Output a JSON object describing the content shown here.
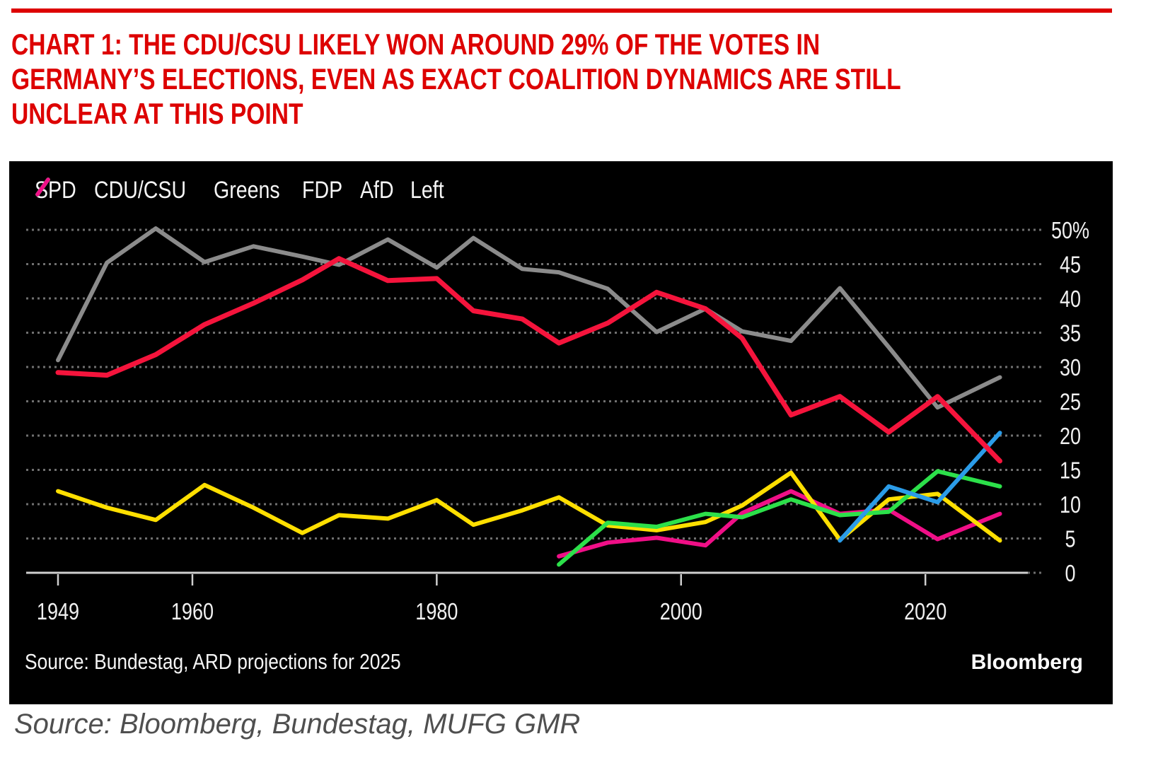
{
  "header": {
    "rule_color": "#dd0000",
    "title_color": "#dd0000",
    "title_lines": [
      "CHART 1: THE CDU/CSU LIKELY WON AROUND 29% OF THE VOTES IN",
      "GERMANY’S ELECTIONS, EVEN AS EXACT COALITION DYNAMICS ARE STILL",
      "UNCLEAR AT THIS POINT"
    ]
  },
  "chart_panel": {
    "background": "#000000",
    "text_color": "#f5f5f5",
    "grid_color": "#707070",
    "axis_color": "#cfcfcf",
    "source_note": "Source: Bundestag, ARD projections for 2025",
    "brand": "Bloomberg"
  },
  "footer": {
    "source_text": "Source: Bloomberg, Bundestag, MUFG GMR"
  },
  "chart_data": {
    "type": "line",
    "title": "",
    "xlabel": "",
    "ylabel": "",
    "unit": "%",
    "grid": "dotted-horizontal",
    "legend_position": "top-left",
    "x": [
      1949,
      1953,
      1957,
      1961,
      1965,
      1969,
      1972,
      1976,
      1980,
      1983,
      1987,
      1990,
      1994,
      1998,
      2002,
      2005,
      2009,
      2013,
      2017,
      2021,
      2025
    ],
    "xticks": [
      1949,
      1960,
      1980,
      2000,
      2020
    ],
    "ylim": [
      0,
      50
    ],
    "yticks": [
      0,
      5,
      10,
      15,
      20,
      25,
      30,
      35,
      40,
      45,
      50
    ],
    "ytick_labels": [
      "0",
      "5",
      "10",
      "15",
      "20",
      "25",
      "30",
      "35",
      "40",
      "45",
      "50%"
    ],
    "series": [
      {
        "name": "SPD",
        "color": "#f5143c",
        "values": [
          29.2,
          28.8,
          31.8,
          36.2,
          39.3,
          42.7,
          45.8,
          42.6,
          42.9,
          38.2,
          37.0,
          33.5,
          36.4,
          40.9,
          38.5,
          34.2,
          23.0,
          25.7,
          20.5,
          25.7,
          16.3
        ]
      },
      {
        "name": "CDU/CSU",
        "color": "#8b8b8b",
        "values": [
          31.0,
          45.2,
          50.2,
          45.3,
          47.6,
          46.1,
          44.9,
          48.6,
          44.5,
          48.8,
          44.3,
          43.8,
          41.4,
          35.1,
          38.5,
          35.2,
          33.8,
          41.5,
          32.9,
          24.1,
          28.5
        ]
      },
      {
        "name": "Greens",
        "color": "#2ce04a",
        "values": [
          null,
          null,
          null,
          null,
          null,
          null,
          null,
          null,
          null,
          null,
          null,
          1.2,
          7.3,
          6.7,
          8.6,
          8.1,
          10.7,
          8.4,
          8.9,
          14.8,
          12.6
        ]
      },
      {
        "name": "FDP",
        "color": "#ffdf00",
        "values": [
          11.9,
          9.5,
          7.7,
          12.8,
          9.5,
          5.8,
          8.4,
          7.9,
          10.6,
          7.0,
          9.1,
          11.0,
          6.9,
          6.2,
          7.4,
          9.8,
          14.6,
          4.8,
          10.7,
          11.5,
          4.7
        ]
      },
      {
        "name": "AfD",
        "color": "#2b9ce8",
        "values": [
          null,
          null,
          null,
          null,
          null,
          null,
          null,
          null,
          null,
          null,
          null,
          null,
          null,
          null,
          null,
          null,
          null,
          4.7,
          12.6,
          10.3,
          20.4
        ]
      },
      {
        "name": "Left",
        "color": "#f00f87",
        "values": [
          null,
          null,
          null,
          null,
          null,
          null,
          null,
          null,
          null,
          null,
          null,
          2.4,
          4.4,
          5.1,
          4.0,
          8.7,
          11.9,
          8.6,
          9.2,
          4.9,
          8.6
        ]
      }
    ]
  }
}
